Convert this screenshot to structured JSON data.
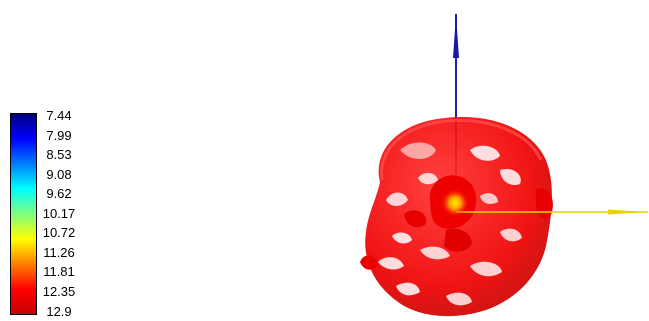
{
  "colorbar": {
    "labels": [
      "7.44",
      "7.99",
      "8.53",
      "9.08",
      "9.62",
      "10.17",
      "10.72",
      "11.26",
      "11.81",
      "12.35",
      "12.9"
    ],
    "min": 7.44,
    "max": 12.9,
    "colormap": [
      "#00007f",
      "#0000ff",
      "#007fff",
      "#00ffff",
      "#7fff7f",
      "#ffff00",
      "#ff7f00",
      "#ff0000",
      "#c80000"
    ]
  },
  "scene": {
    "isosurface_color": "#ff0000",
    "isosurface_highlight": "#ffb000",
    "axis_vertical_color": "#2020b0",
    "axis_horizontal_color": "#e6d400"
  }
}
